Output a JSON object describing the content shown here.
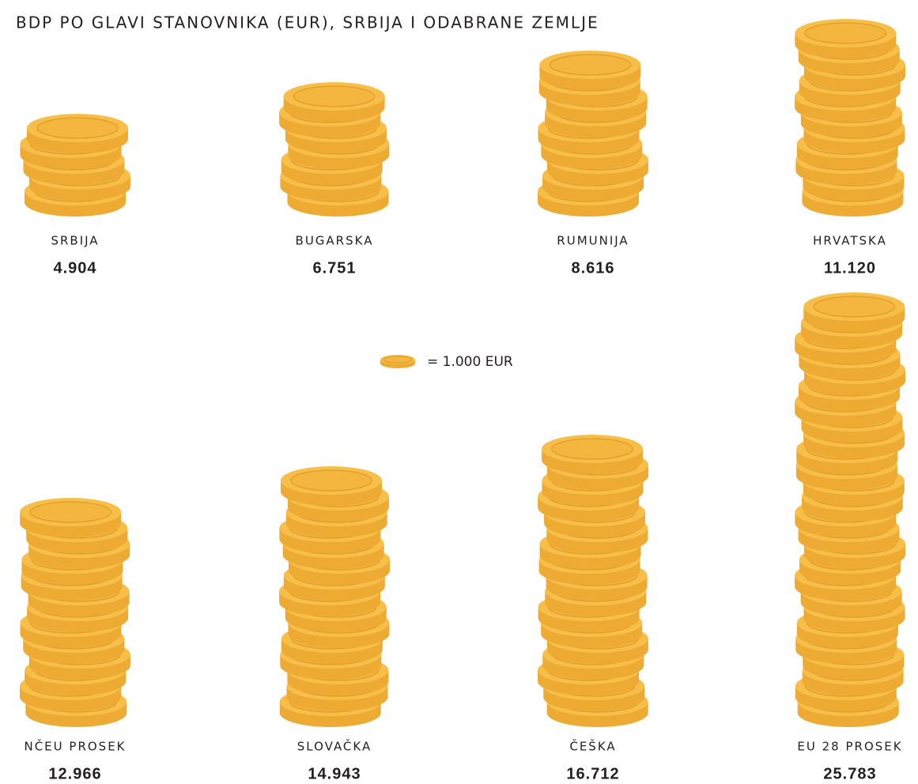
{
  "chart_data": {
    "type": "pictograph",
    "title": "BDP PO GLAVI STANOVNIKA (EUR), SRBIJA I ODABRANE ZEMLJE",
    "categories": [
      "SRBIJA",
      "BUGARSKA",
      "RUMUNIJA",
      "HRVATSKA",
      "NČEU PROSEK",
      "SLOVAČKA",
      "ČEŠKA",
      "EU 28 PROSEK"
    ],
    "values": [
      4904,
      6751,
      8616,
      11120,
      12966,
      14943,
      16712,
      25783
    ],
    "value_labels": [
      "4.904",
      "6.751",
      "8.616",
      "11.120",
      "12.966",
      "14.943",
      "16.712",
      "25.783"
    ],
    "unit": {
      "value": 1000,
      "label": "= 1.000 EUR"
    },
    "color": "#f4b43c"
  }
}
